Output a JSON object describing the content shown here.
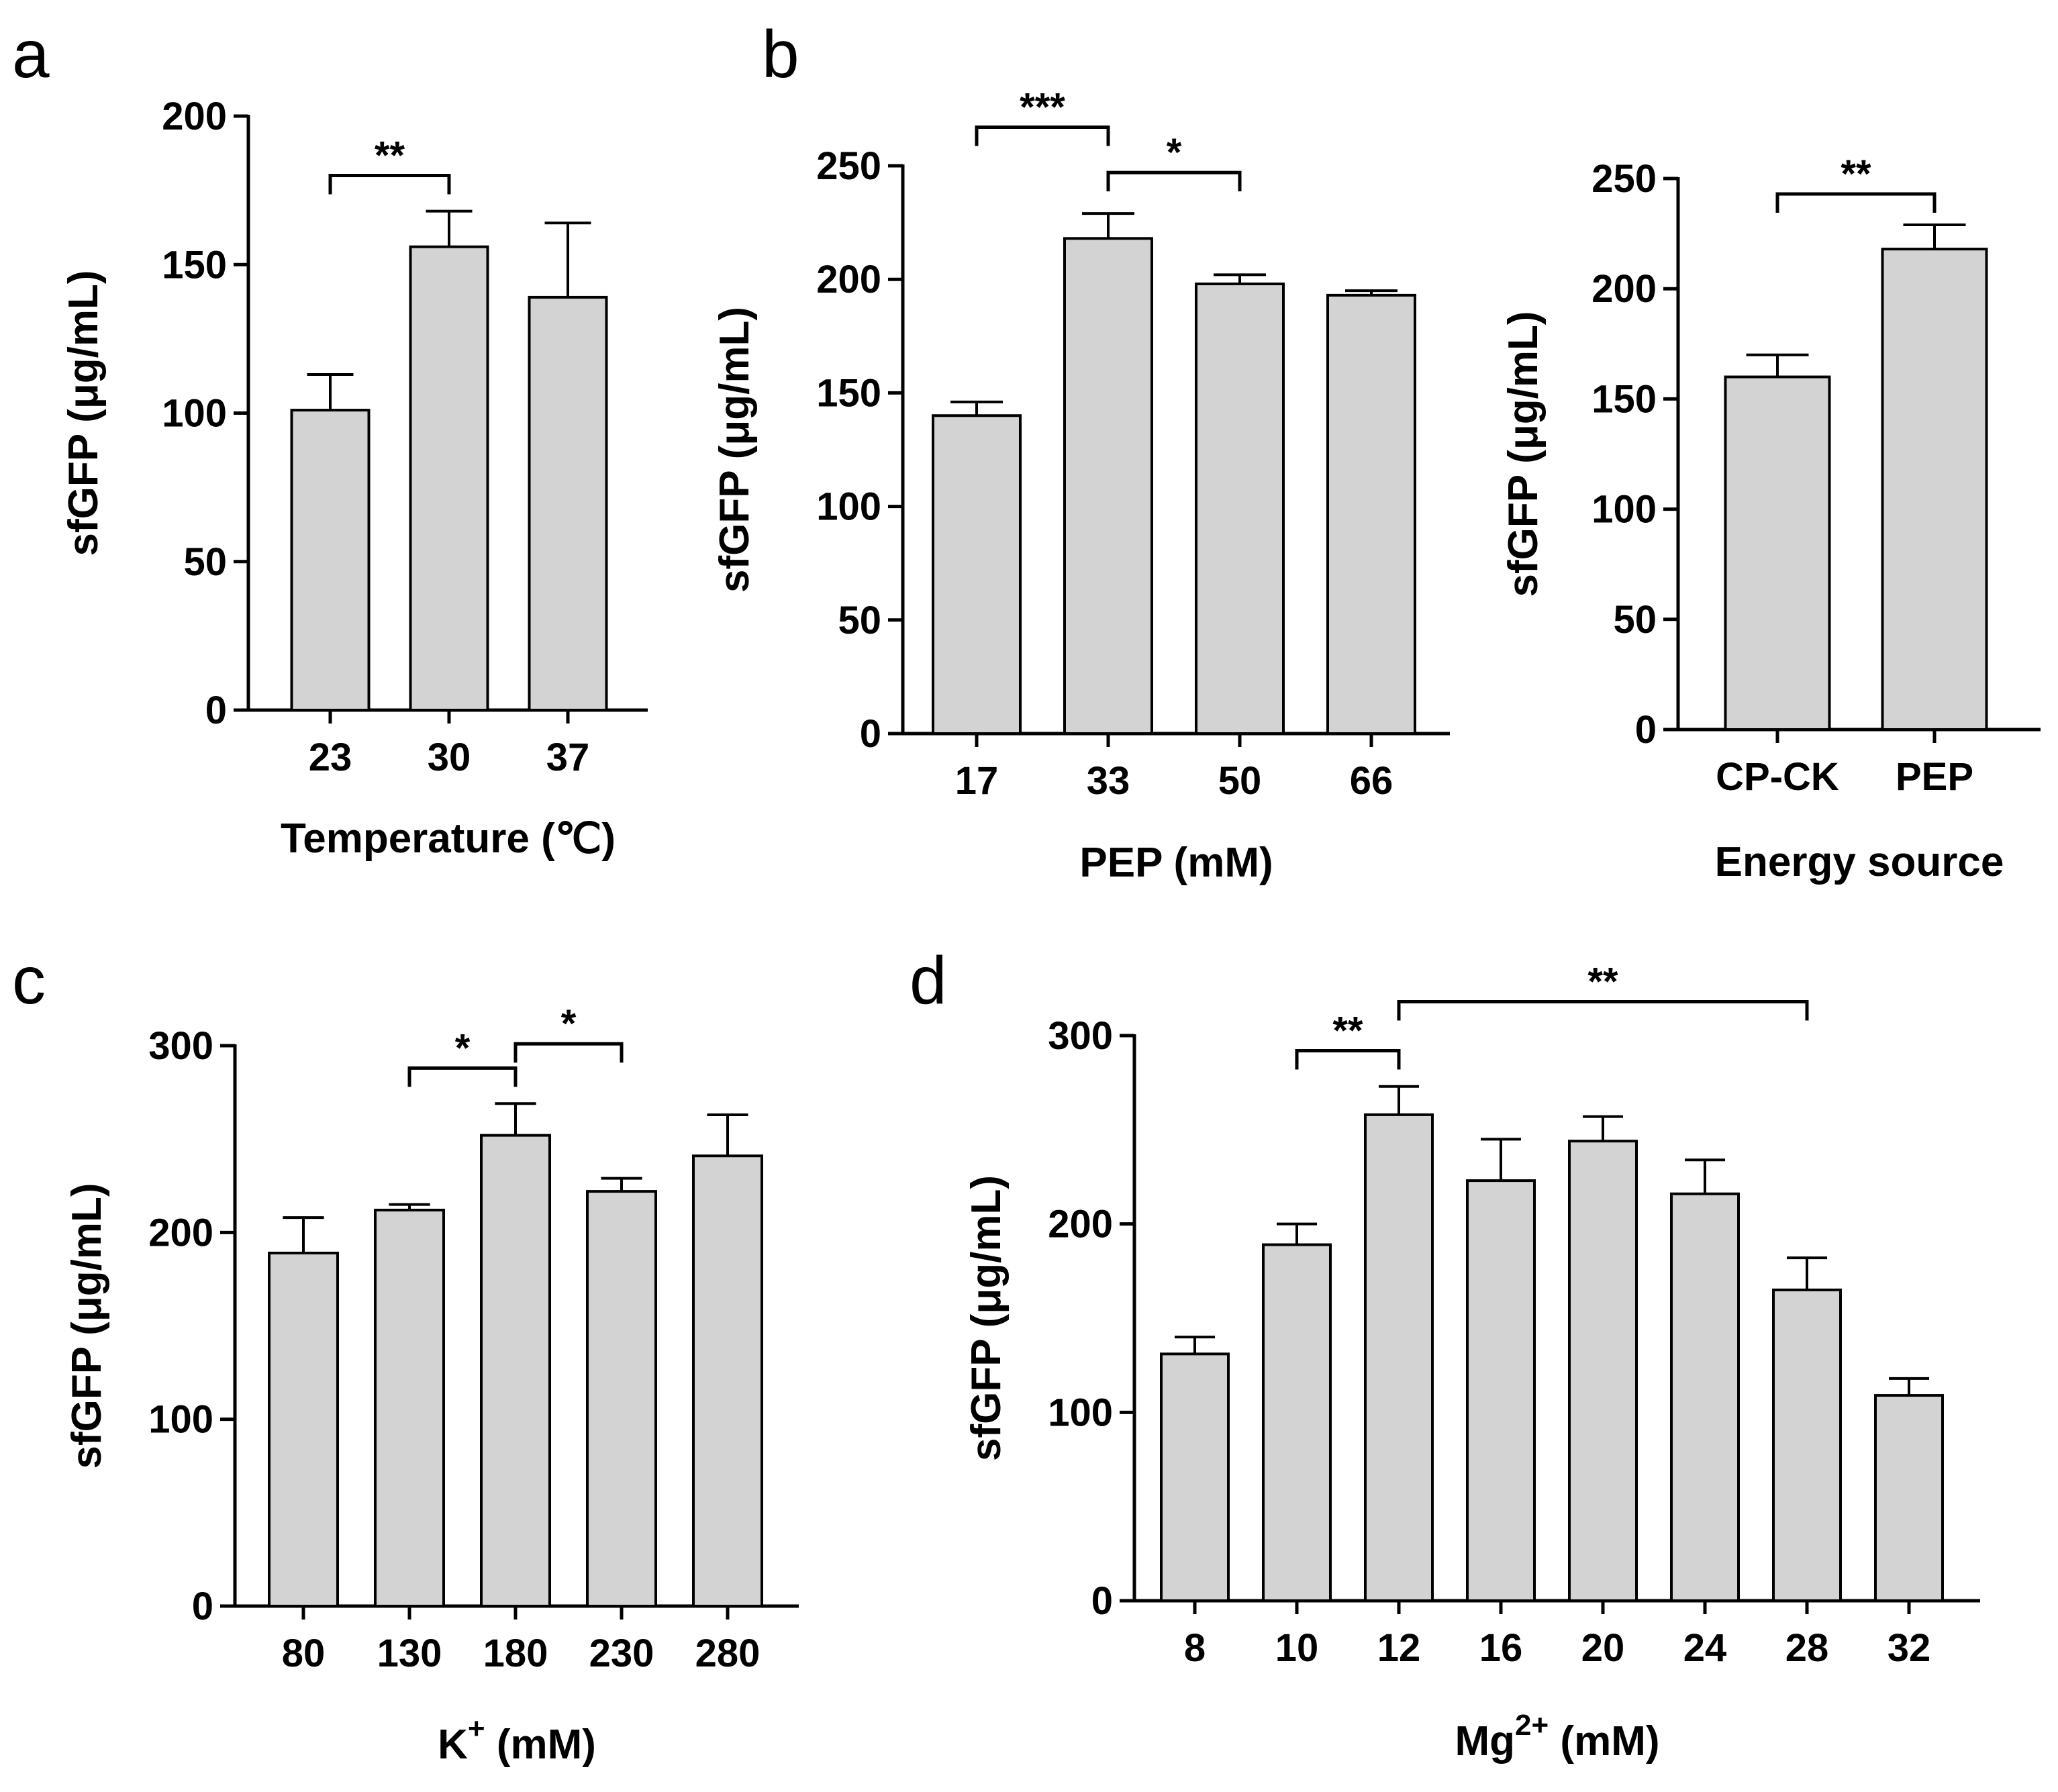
{
  "panel_letters": [
    "a",
    "b",
    "c",
    "d"
  ],
  "chart_data": [
    {
      "id": "a",
      "type": "bar",
      "categories": [
        "23",
        "30",
        "37"
      ],
      "values": [
        101,
        156,
        139
      ],
      "errors": [
        12,
        12,
        25
      ],
      "xlabel": "Temperature (℃)",
      "ylabel": "sfGFP (μg/mL)",
      "ylim": [
        0,
        200
      ],
      "yticks": [
        0,
        50,
        100,
        150,
        200
      ],
      "significance": [
        {
          "from": 0,
          "to": 1,
          "label": "**",
          "y": 180
        }
      ]
    },
    {
      "id": "b1",
      "type": "bar",
      "categories": [
        "17",
        "33",
        "50",
        "66"
      ],
      "values": [
        140,
        218,
        198,
        193
      ],
      "errors": [
        6,
        11,
        4,
        2
      ],
      "xlabel": "PEP (mM)",
      "ylabel": "sfGFP (μg/mL)",
      "ylim": [
        0,
        250
      ],
      "yticks": [
        0,
        50,
        100,
        150,
        200,
        250
      ],
      "significance": [
        {
          "from": 0,
          "to": 1,
          "label": "***",
          "y": 267
        },
        {
          "from": 1,
          "to": 2,
          "label": "*",
          "y": 247
        }
      ]
    },
    {
      "id": "b2",
      "type": "bar",
      "categories": [
        "CP-CK",
        "PEP"
      ],
      "values": [
        160,
        218
      ],
      "errors": [
        10,
        11
      ],
      "xlabel": "Energy source",
      "ylabel": "sfGFP (μg/mL)",
      "ylim": [
        0,
        250
      ],
      "yticks": [
        0,
        50,
        100,
        150,
        200,
        250
      ],
      "significance": [
        {
          "from": 0,
          "to": 1,
          "label": "**",
          "y": 243
        }
      ]
    },
    {
      "id": "c",
      "type": "bar",
      "categories": [
        "80",
        "130",
        "180",
        "230",
        "280"
      ],
      "values": [
        189,
        212,
        252,
        222,
        241
      ],
      "errors": [
        19,
        3,
        17,
        7,
        22
      ],
      "xlabel": "K+ (mM)",
      "ylabel": "sfGFP (μg/mL)",
      "ylim": [
        0,
        300
      ],
      "yticks": [
        0,
        100,
        200,
        300
      ],
      "significance": [
        {
          "from": 1,
          "to": 2,
          "label": "*",
          "y": 288
        },
        {
          "from": 2,
          "to": 3,
          "label": "*",
          "y": 301
        }
      ]
    },
    {
      "id": "d",
      "type": "bar",
      "categories": [
        "8",
        "10",
        "12",
        "16",
        "20",
        "24",
        "28",
        "32"
      ],
      "values": [
        131,
        189,
        258,
        223,
        244,
        216,
        165,
        109
      ],
      "errors": [
        9,
        11,
        15,
        22,
        13,
        18,
        17,
        9
      ],
      "xlabel": "Mg2+ (mM)",
      "ylabel": "sfGFP (μg/mL)",
      "ylim": [
        0,
        300
      ],
      "yticks": [
        0,
        100,
        200,
        300
      ],
      "significance": [
        {
          "from": 1,
          "to": 2,
          "label": "**",
          "y": 292
        },
        {
          "from": 2,
          "to": 6,
          "label": "**",
          "y": 318
        }
      ]
    }
  ]
}
